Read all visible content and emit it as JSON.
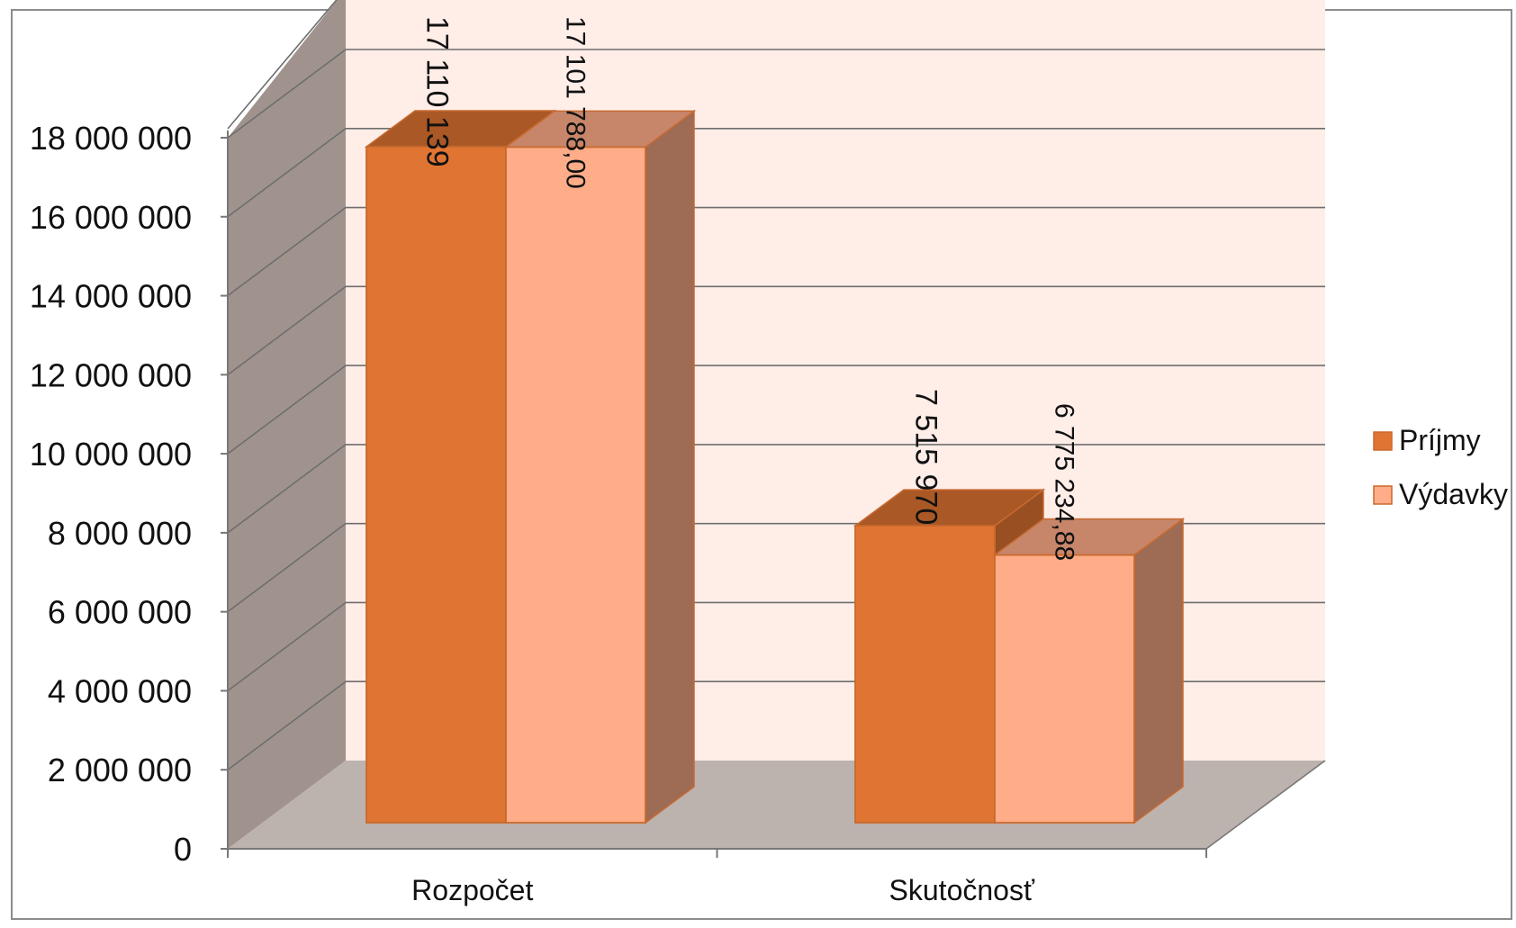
{
  "chart_data": {
    "type": "bar",
    "style": "3d-clustered-column",
    "categories": [
      "Rozpočet",
      "Skutočnosť"
    ],
    "series": [
      {
        "name": "Príjmy",
        "values": [
          17110139,
          7515970
        ],
        "labels": [
          "17 110 139",
          "7 515 970"
        ],
        "color": "#E07432"
      },
      {
        "name": "Výdavky",
        "values": [
          17101788.0,
          6775234.88
        ],
        "labels": [
          "17 101 788,00",
          "6 775 234,88"
        ],
        "color": "#FFAC88"
      }
    ],
    "ylim": [
      0,
      18000000
    ],
    "yticks": [
      0,
      2000000,
      4000000,
      6000000,
      8000000,
      10000000,
      12000000,
      14000000,
      16000000,
      18000000
    ],
    "ytick_labels": [
      "0",
      "2 000 000",
      "4 000 000",
      "6 000 000",
      "8 000 000",
      "10 000 000",
      "12 000 000",
      "14 000 000",
      "16 000 000",
      "18 000 000"
    ],
    "grid": true,
    "legend_position": "right",
    "colors": {
      "back_wall": "#FFEDE8",
      "side_wall": "#A0938E",
      "floor": "#BCB2AE",
      "gridline": "#6E6E6E"
    }
  }
}
